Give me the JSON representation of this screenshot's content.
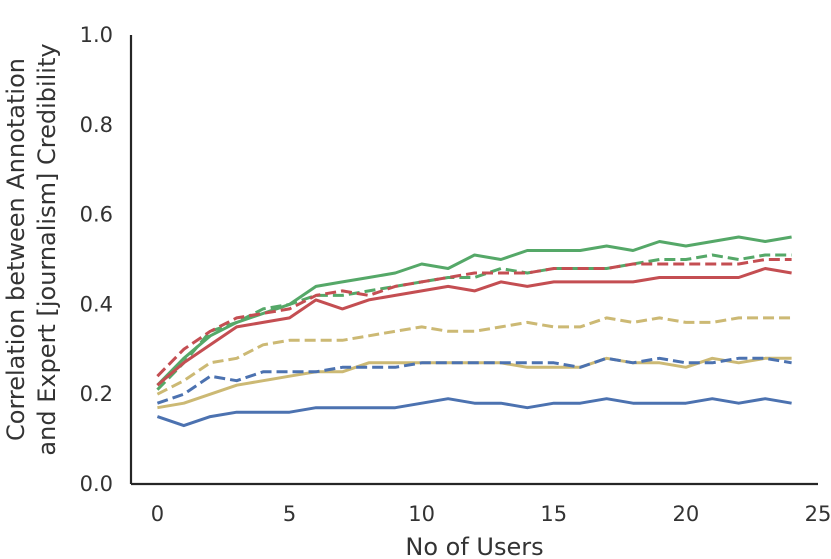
{
  "chart_data": {
    "type": "line",
    "title": "",
    "xlabel": "No of Users",
    "ylabel_lines": [
      "Correlation between Annotation",
      "and Expert [journalism] Credibility"
    ],
    "xlim": [
      -1,
      25
    ],
    "ylim": [
      0.0,
      1.0
    ],
    "xticks": [
      0,
      5,
      10,
      15,
      20,
      25
    ],
    "yticks": [
      0.0,
      0.2,
      0.4,
      0.6,
      0.8,
      1.0
    ],
    "xtick_labels": [
      "0",
      "5",
      "10",
      "15",
      "20",
      "25"
    ],
    "ytick_labels": [
      "0.0",
      "0.2",
      "0.4",
      "0.6",
      "0.8",
      "1.0"
    ],
    "grid": false,
    "x": [
      0,
      1,
      2,
      3,
      4,
      5,
      6,
      7,
      8,
      9,
      10,
      11,
      12,
      13,
      14,
      15,
      16,
      17,
      18,
      19,
      20,
      21,
      22,
      23,
      24
    ],
    "series": [
      {
        "color": "#55a868",
        "dash": "solid",
        "values": [
          0.22,
          0.28,
          0.33,
          0.36,
          0.38,
          0.4,
          0.44,
          0.45,
          0.46,
          0.47,
          0.49,
          0.48,
          0.51,
          0.5,
          0.52,
          0.52,
          0.52,
          0.53,
          0.52,
          0.54,
          0.53,
          0.54,
          0.55,
          0.54,
          0.55
        ]
      },
      {
        "color": "#55a868",
        "dash": "dashed",
        "values": [
          0.21,
          0.27,
          0.34,
          0.36,
          0.39,
          0.4,
          0.42,
          0.42,
          0.43,
          0.44,
          0.45,
          0.46,
          0.46,
          0.48,
          0.47,
          0.48,
          0.48,
          0.48,
          0.49,
          0.5,
          0.5,
          0.51,
          0.5,
          0.51,
          0.51
        ]
      },
      {
        "color": "#c44e52",
        "dash": "dashed",
        "values": [
          0.24,
          0.3,
          0.34,
          0.37,
          0.38,
          0.39,
          0.42,
          0.43,
          0.42,
          0.44,
          0.45,
          0.46,
          0.47,
          0.47,
          0.47,
          0.48,
          0.48,
          0.48,
          0.49,
          0.49,
          0.49,
          0.49,
          0.49,
          0.5,
          0.5
        ]
      },
      {
        "color": "#c44e52",
        "dash": "solid",
        "values": [
          0.22,
          0.27,
          0.31,
          0.35,
          0.36,
          0.37,
          0.41,
          0.39,
          0.41,
          0.42,
          0.43,
          0.44,
          0.43,
          0.45,
          0.44,
          0.45,
          0.45,
          0.45,
          0.45,
          0.46,
          0.46,
          0.46,
          0.46,
          0.48,
          0.47
        ]
      },
      {
        "color": "#ccb974",
        "dash": "dashed",
        "values": [
          0.2,
          0.23,
          0.27,
          0.28,
          0.31,
          0.32,
          0.32,
          0.32,
          0.33,
          0.34,
          0.35,
          0.34,
          0.34,
          0.35,
          0.36,
          0.35,
          0.35,
          0.37,
          0.36,
          0.37,
          0.36,
          0.36,
          0.37,
          0.37,
          0.37
        ]
      },
      {
        "color": "#ccb974",
        "dash": "solid",
        "values": [
          0.17,
          0.18,
          0.2,
          0.22,
          0.23,
          0.24,
          0.25,
          0.25,
          0.27,
          0.27,
          0.27,
          0.27,
          0.27,
          0.27,
          0.26,
          0.26,
          0.26,
          0.28,
          0.27,
          0.27,
          0.26,
          0.28,
          0.27,
          0.28,
          0.28
        ]
      },
      {
        "color": "#4c72b0",
        "dash": "dashed",
        "values": [
          0.18,
          0.2,
          0.24,
          0.23,
          0.25,
          0.25,
          0.25,
          0.26,
          0.26,
          0.26,
          0.27,
          0.27,
          0.27,
          0.27,
          0.27,
          0.27,
          0.26,
          0.28,
          0.27,
          0.28,
          0.27,
          0.27,
          0.28,
          0.28,
          0.27
        ]
      },
      {
        "color": "#4c72b0",
        "dash": "solid",
        "values": [
          0.15,
          0.13,
          0.15,
          0.16,
          0.16,
          0.16,
          0.17,
          0.17,
          0.17,
          0.17,
          0.18,
          0.19,
          0.18,
          0.18,
          0.17,
          0.18,
          0.18,
          0.19,
          0.18,
          0.18,
          0.18,
          0.19,
          0.18,
          0.19,
          0.18
        ]
      }
    ]
  }
}
